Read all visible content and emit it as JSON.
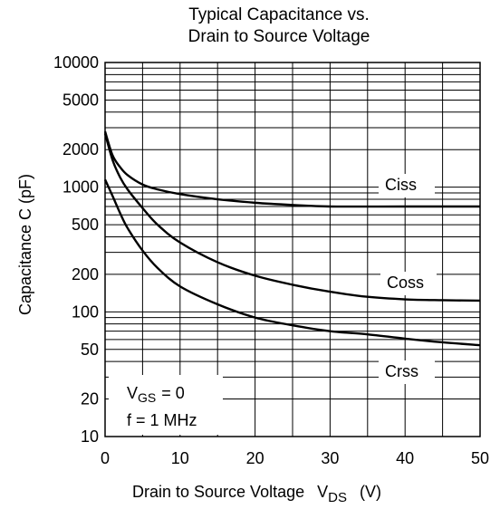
{
  "chart_data": {
    "type": "line",
    "title": "Typical Capacitance vs. Drain to Source Voltage",
    "title_lines": [
      "Typical Capacitance vs.",
      "Drain to Source Voltage"
    ],
    "xlabel": {
      "main": "Drain to Source Voltage",
      "symbol": "V",
      "subscript": "DS",
      "unit": "(V)"
    },
    "ylabel": "Capacitance  C  (pF)",
    "xlim": [
      0,
      50
    ],
    "ylim": [
      10,
      10000
    ],
    "yscale": "log",
    "grid": true,
    "x_ticks": [
      "0",
      "10",
      "20",
      "30",
      "40",
      "50"
    ],
    "y_ticks": [
      "10",
      "20",
      "50",
      "100",
      "200",
      "500",
      "1000",
      "2000",
      "5000",
      "10000"
    ],
    "series": [
      {
        "name": "Ciss",
        "x": [
          0,
          1,
          2,
          3,
          5,
          7,
          10,
          15,
          20,
          25,
          30,
          40,
          50
        ],
        "y": [
          2800,
          1800,
          1450,
          1250,
          1050,
          960,
          880,
          800,
          750,
          720,
          700,
          700,
          700
        ]
      },
      {
        "name": "Coss",
        "x": [
          0,
          1,
          2,
          3,
          5,
          7,
          10,
          15,
          20,
          25,
          30,
          35,
          40,
          45,
          50
        ],
        "y": [
          2700,
          1650,
          1200,
          960,
          680,
          500,
          360,
          250,
          195,
          165,
          145,
          132,
          126,
          124,
          123
        ]
      },
      {
        "name": "Crss",
        "x": [
          0,
          1,
          2,
          3,
          5,
          7,
          10,
          15,
          20,
          25,
          30,
          35,
          40,
          45,
          50
        ],
        "y": [
          1150,
          850,
          620,
          470,
          310,
          225,
          160,
          115,
          90,
          78,
          70,
          66,
          61,
          57,
          54
        ]
      }
    ],
    "annotations": {
      "vgs": {
        "symbol": "V",
        "subscript": "GS",
        "value": "= 0"
      },
      "freq": "f = 1 MHz"
    }
  }
}
